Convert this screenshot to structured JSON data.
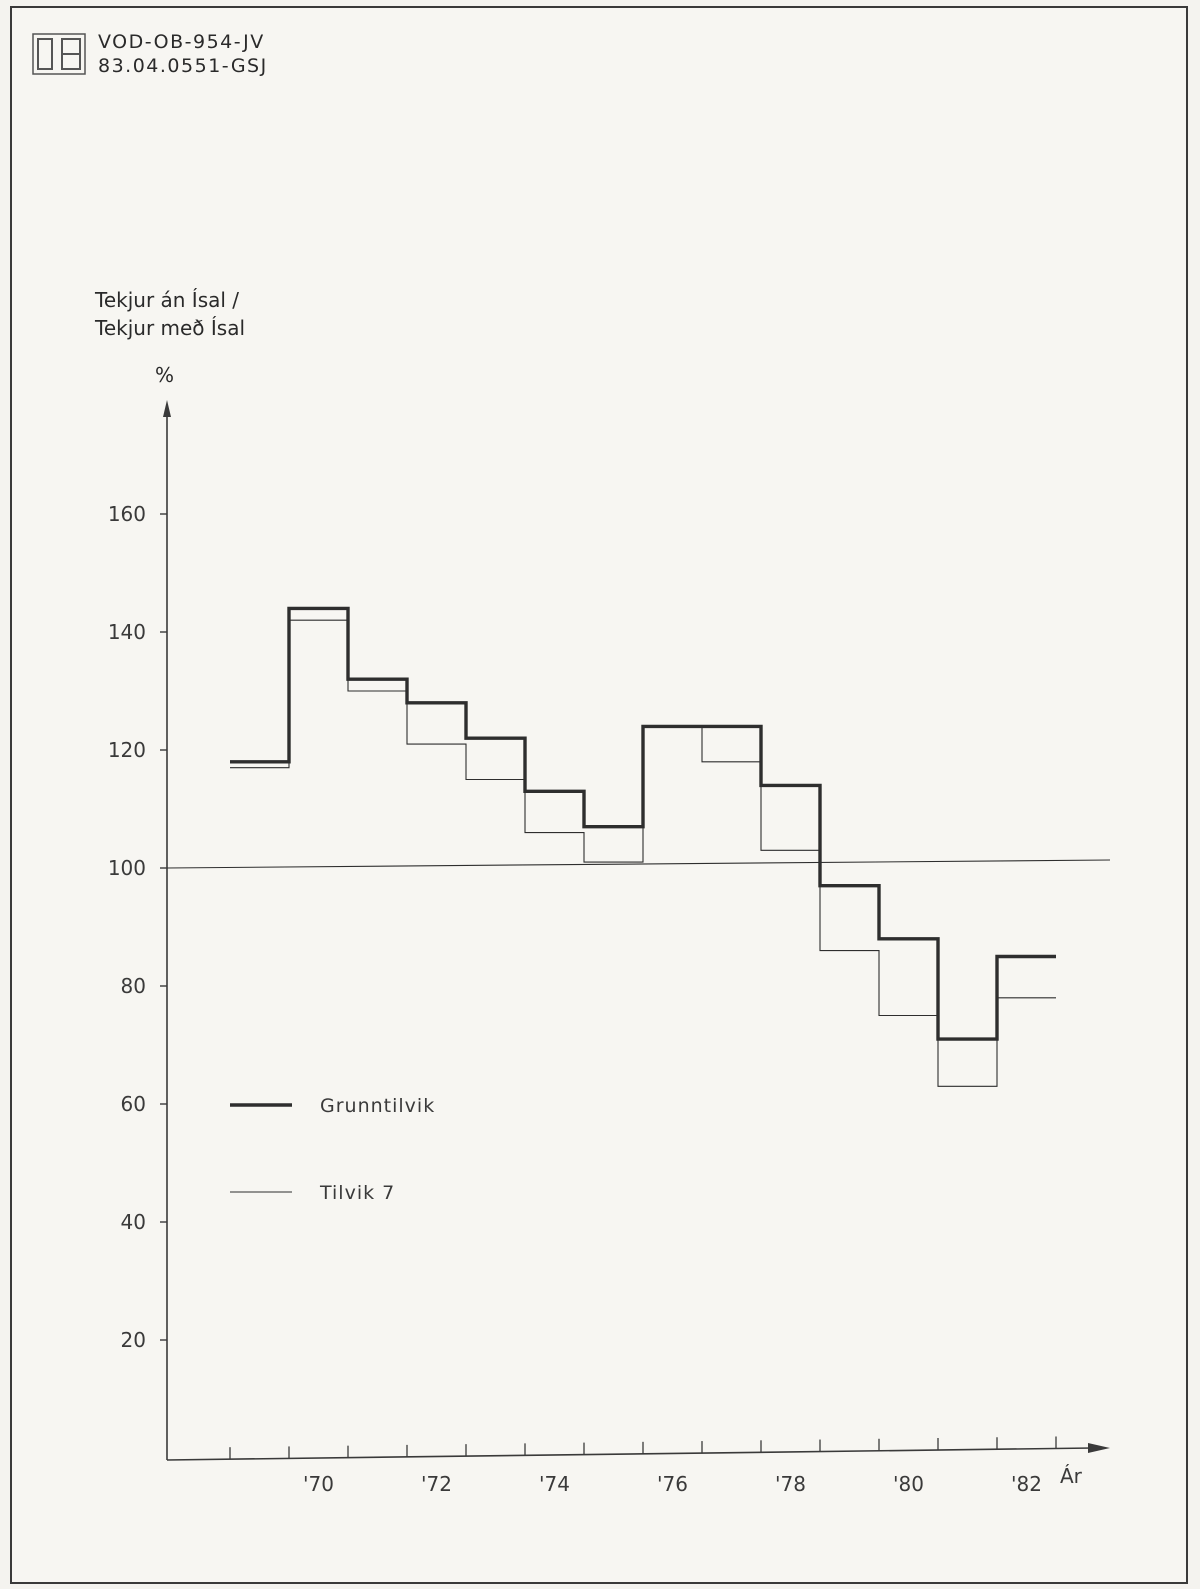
{
  "document": {
    "code_line_1": "VOD-OB-954-JV",
    "code_line_2": "83.04.0551-GSJ"
  },
  "colors": {
    "paper": "#f7f6f2",
    "ink": "#2e2e2e"
  },
  "chart_data": {
    "type": "line",
    "style": "step",
    "ylabel_line_1": "Tekjur án Ísal /",
    "ylabel_line_2": "Tekjur með Ísal",
    "yunit": "%",
    "xlabel": "Ár",
    "ylim": [
      0,
      180
    ],
    "yticks": [
      20,
      40,
      60,
      80,
      100,
      120,
      140,
      160
    ],
    "xlim": [
      1968.5,
      1982.5
    ],
    "xtick_values": [
      1969,
      1970,
      1971,
      1972,
      1973,
      1974,
      1975,
      1976,
      1977,
      1978,
      1979,
      1980,
      1981,
      1982
    ],
    "xtick_labels": [
      {
        "year": 1970,
        "label": "'70"
      },
      {
        "year": 1972,
        "label": "'72"
      },
      {
        "year": 1974,
        "label": "'74"
      },
      {
        "year": 1976,
        "label": "'76"
      },
      {
        "year": 1978,
        "label": "'78"
      },
      {
        "year": 1980,
        "label": "'80"
      },
      {
        "year": 1982,
        "label": "'82"
      }
    ],
    "reference_line": 100,
    "grid": false,
    "legend_position": "lower-left",
    "series": [
      {
        "name": "Grunntilvik",
        "line": "thick",
        "years": [
          1969,
          1970,
          1971,
          1972,
          1973,
          1974,
          1975,
          1976,
          1977,
          1978,
          1979,
          1980,
          1981,
          1982
        ],
        "values": [
          118,
          144,
          132,
          128,
          122,
          113,
          107,
          124,
          124,
          114,
          97,
          88,
          71,
          85
        ]
      },
      {
        "name": "Tilvik 7",
        "line": "thin",
        "years": [
          1969,
          1970,
          1971,
          1972,
          1973,
          1974,
          1975,
          1976,
          1977,
          1978,
          1979,
          1980,
          1981,
          1982
        ],
        "values": [
          117,
          142,
          130,
          121,
          115,
          106,
          101,
          124,
          118,
          103,
          86,
          75,
          63,
          78
        ]
      }
    ]
  }
}
